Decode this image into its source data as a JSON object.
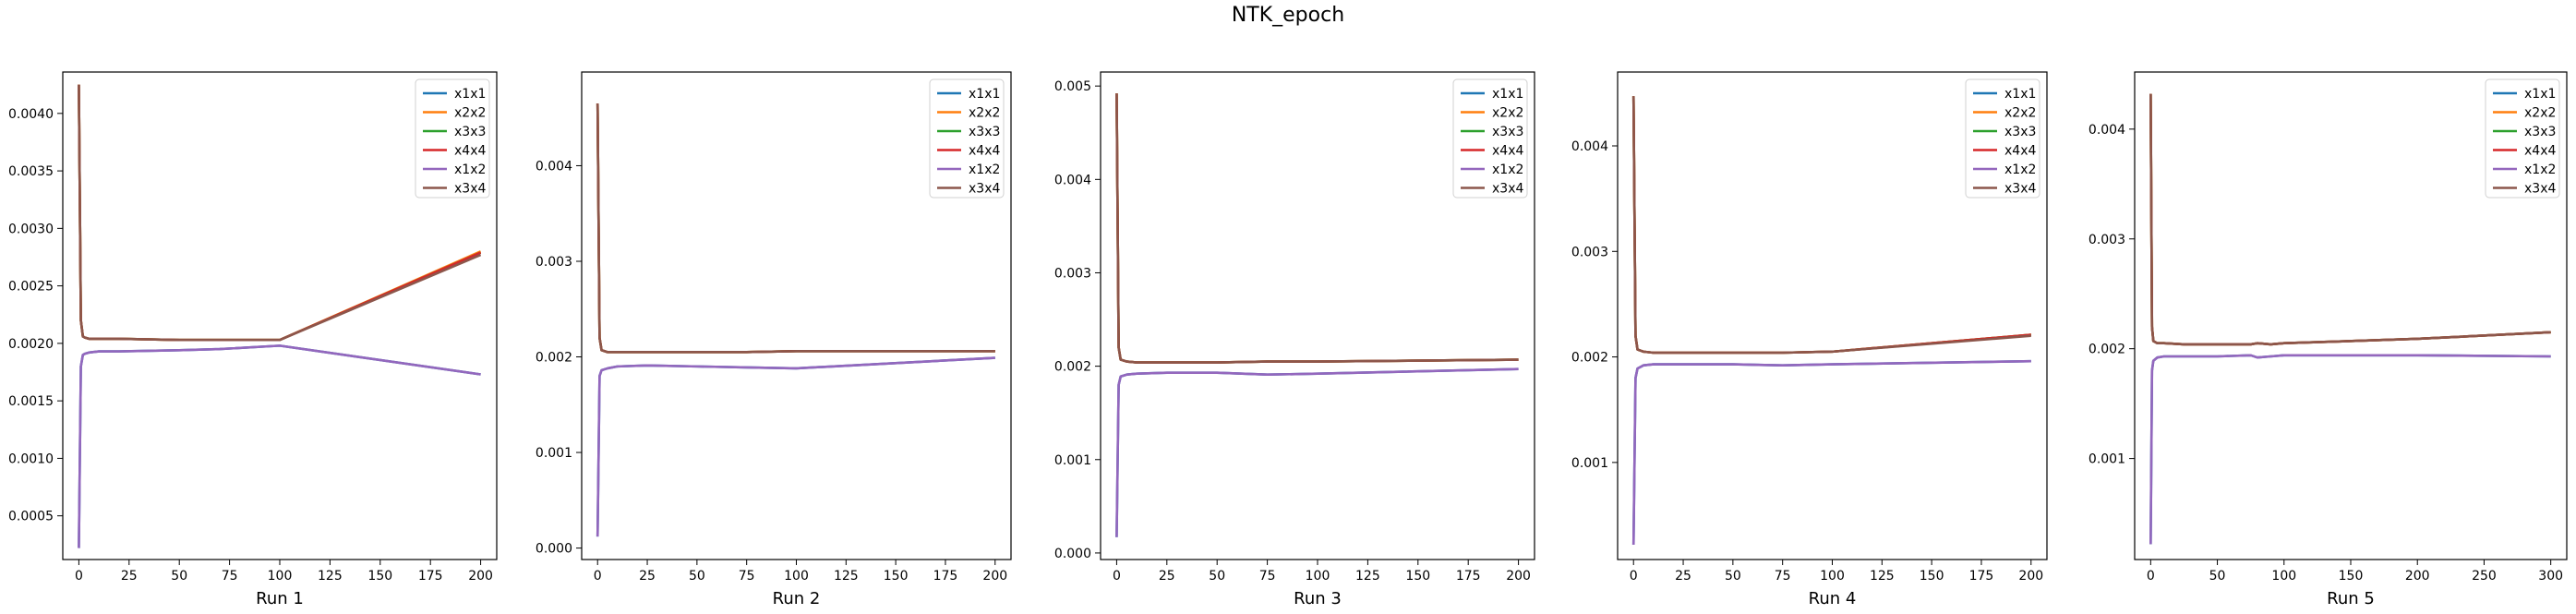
{
  "figure": {
    "title": "NTK_epoch"
  },
  "chart_data": [
    {
      "type": "line",
      "xlabel": "Run 1",
      "xlim": [
        -8,
        208
      ],
      "ylim": [
        0.00012,
        0.00436
      ],
      "xticks": [
        0,
        25,
        50,
        75,
        100,
        125,
        150,
        175,
        200
      ],
      "yticks": [
        0.0005,
        0.001,
        0.0015,
        0.002,
        0.0025,
        0.003,
        0.0035,
        0.004
      ],
      "ytick_labels": [
        "0.0005",
        "0.0010",
        "0.0015",
        "0.0020",
        "0.0025",
        "0.0030",
        "0.0035",
        "0.0040"
      ],
      "legend": "top-right",
      "series": [
        {
          "name": "x1x1",
          "color": "#1f77b4",
          "x": [
            0,
            1,
            2,
            3,
            5,
            10,
            20,
            50,
            70,
            100,
            200
          ],
          "y": [
            0.00022,
            0.0018,
            0.0019,
            0.00191,
            0.00192,
            0.00193,
            0.00193,
            0.00194,
            0.00195,
            0.00198,
            0.00173
          ]
        },
        {
          "name": "x2x2",
          "color": "#ff7f0e",
          "x": [
            0,
            1,
            2,
            3,
            5,
            10,
            20,
            50,
            70,
            100,
            200
          ],
          "y": [
            0.00425,
            0.0022,
            0.00206,
            0.00205,
            0.00204,
            0.00204,
            0.00204,
            0.00203,
            0.00203,
            0.00203,
            0.0028
          ]
        },
        {
          "name": "x3x3",
          "color": "#2ca02c",
          "x": [
            0,
            1,
            2,
            3,
            5,
            10,
            20,
            50,
            70,
            100,
            200
          ],
          "y": [
            0.00425,
            0.0022,
            0.00206,
            0.00205,
            0.00204,
            0.00204,
            0.00204,
            0.00203,
            0.00203,
            0.00203,
            0.00279
          ]
        },
        {
          "name": "x4x4",
          "color": "#d62728",
          "x": [
            0,
            1,
            2,
            3,
            5,
            10,
            20,
            50,
            70,
            100,
            200
          ],
          "y": [
            0.00425,
            0.0022,
            0.00206,
            0.00205,
            0.00204,
            0.00204,
            0.00204,
            0.00203,
            0.00203,
            0.00203,
            0.00279
          ]
        },
        {
          "name": "x1x2",
          "color": "#9467bd",
          "x": [
            0,
            1,
            2,
            3,
            5,
            10,
            20,
            50,
            70,
            100,
            200
          ],
          "y": [
            0.00022,
            0.0018,
            0.0019,
            0.00191,
            0.00192,
            0.00193,
            0.00193,
            0.00194,
            0.00195,
            0.00198,
            0.00173
          ]
        },
        {
          "name": "x3x4",
          "color": "#8c564b",
          "x": [
            0,
            1,
            2,
            3,
            5,
            10,
            20,
            50,
            70,
            100,
            200
          ],
          "y": [
            0.00425,
            0.0022,
            0.00206,
            0.00205,
            0.00204,
            0.00204,
            0.00204,
            0.00203,
            0.00203,
            0.00203,
            0.00277
          ]
        }
      ]
    },
    {
      "type": "line",
      "xlabel": "Run 2",
      "xlim": [
        -8,
        208
      ],
      "ylim": [
        -0.00012,
        0.00498
      ],
      "xticks": [
        0,
        25,
        50,
        75,
        100,
        125,
        150,
        175,
        200
      ],
      "yticks": [
        0.0,
        0.001,
        0.002,
        0.003,
        0.004
      ],
      "ytick_labels": [
        "0.000",
        "0.001",
        "0.002",
        "0.003",
        "0.004"
      ],
      "legend": "top-right",
      "series": [
        {
          "name": "x1x1",
          "color": "#1f77b4",
          "x": [
            0,
            1,
            2,
            5,
            10,
            25,
            50,
            75,
            100,
            200
          ],
          "y": [
            0.00012,
            0.0018,
            0.00186,
            0.00188,
            0.0019,
            0.00191,
            0.0019,
            0.00189,
            0.00188,
            0.00199
          ]
        },
        {
          "name": "x2x2",
          "color": "#ff7f0e",
          "x": [
            0,
            1,
            2,
            5,
            10,
            25,
            50,
            75,
            100,
            200
          ],
          "y": [
            0.00465,
            0.0022,
            0.00207,
            0.00205,
            0.00205,
            0.00205,
            0.00205,
            0.00205,
            0.00206,
            0.00206
          ]
        },
        {
          "name": "x3x3",
          "color": "#2ca02c",
          "x": [
            0,
            1,
            2,
            5,
            10,
            25,
            50,
            75,
            100,
            200
          ],
          "y": [
            0.00465,
            0.0022,
            0.00207,
            0.00205,
            0.00205,
            0.00205,
            0.00205,
            0.00205,
            0.00206,
            0.00206
          ]
        },
        {
          "name": "x4x4",
          "color": "#d62728",
          "x": [
            0,
            1,
            2,
            5,
            10,
            25,
            50,
            75,
            100,
            200
          ],
          "y": [
            0.00465,
            0.0022,
            0.00207,
            0.00205,
            0.00205,
            0.00205,
            0.00205,
            0.00205,
            0.00206,
            0.00206
          ]
        },
        {
          "name": "x1x2",
          "color": "#9467bd",
          "x": [
            0,
            1,
            2,
            5,
            10,
            25,
            50,
            75,
            100,
            200
          ],
          "y": [
            0.00012,
            0.0018,
            0.00186,
            0.00188,
            0.0019,
            0.00191,
            0.0019,
            0.00189,
            0.00188,
            0.00199
          ]
        },
        {
          "name": "x3x4",
          "color": "#8c564b",
          "x": [
            0,
            1,
            2,
            5,
            10,
            25,
            50,
            75,
            100,
            200
          ],
          "y": [
            0.00465,
            0.0022,
            0.00207,
            0.00205,
            0.00205,
            0.00205,
            0.00205,
            0.00205,
            0.00206,
            0.00206
          ]
        }
      ]
    },
    {
      "type": "line",
      "xlabel": "Run 3",
      "xlim": [
        -8,
        208
      ],
      "ylim": [
        -7e-05,
        0.00515
      ],
      "xticks": [
        0,
        25,
        50,
        75,
        100,
        125,
        150,
        175,
        200
      ],
      "yticks": [
        0.0,
        0.001,
        0.002,
        0.003,
        0.004,
        0.005
      ],
      "ytick_labels": [
        "0.000",
        "0.001",
        "0.002",
        "0.003",
        "0.004",
        "0.005"
      ],
      "legend": "top-right",
      "series": [
        {
          "name": "x1x1",
          "color": "#1f77b4",
          "x": [
            0,
            1,
            2,
            5,
            10,
            25,
            50,
            75,
            100,
            200
          ],
          "y": [
            0.00017,
            0.0018,
            0.00189,
            0.00191,
            0.00192,
            0.00193,
            0.00193,
            0.00191,
            0.00192,
            0.00197
          ]
        },
        {
          "name": "x2x2",
          "color": "#ff7f0e",
          "x": [
            0,
            1,
            2,
            5,
            10,
            25,
            50,
            75,
            100,
            200
          ],
          "y": [
            0.00492,
            0.0022,
            0.00207,
            0.00205,
            0.00204,
            0.00204,
            0.00204,
            0.00205,
            0.00205,
            0.00207
          ]
        },
        {
          "name": "x3x3",
          "color": "#2ca02c",
          "x": [
            0,
            1,
            2,
            5,
            10,
            25,
            50,
            75,
            100,
            200
          ],
          "y": [
            0.00492,
            0.0022,
            0.00207,
            0.00205,
            0.00204,
            0.00204,
            0.00204,
            0.00205,
            0.00205,
            0.00207
          ]
        },
        {
          "name": "x4x4",
          "color": "#d62728",
          "x": [
            0,
            1,
            2,
            5,
            10,
            25,
            50,
            75,
            100,
            200
          ],
          "y": [
            0.00492,
            0.0022,
            0.00207,
            0.00205,
            0.00204,
            0.00204,
            0.00204,
            0.00205,
            0.00205,
            0.00207
          ]
        },
        {
          "name": "x1x2",
          "color": "#9467bd",
          "x": [
            0,
            1,
            2,
            5,
            10,
            25,
            50,
            75,
            100,
            200
          ],
          "y": [
            0.00017,
            0.0018,
            0.00189,
            0.00191,
            0.00192,
            0.00193,
            0.00193,
            0.00191,
            0.00192,
            0.00197
          ]
        },
        {
          "name": "x3x4",
          "color": "#8c564b",
          "x": [
            0,
            1,
            2,
            5,
            10,
            25,
            50,
            75,
            100,
            200
          ],
          "y": [
            0.00492,
            0.0022,
            0.00207,
            0.00205,
            0.00204,
            0.00204,
            0.00204,
            0.00205,
            0.00205,
            0.00207
          ]
        }
      ]
    },
    {
      "type": "line",
      "xlabel": "Run 4",
      "xlim": [
        -8,
        208
      ],
      "ylim": [
        8e-05,
        0.0047
      ],
      "xticks": [
        0,
        25,
        50,
        75,
        100,
        125,
        150,
        175,
        200
      ],
      "yticks": [
        0.001,
        0.002,
        0.003,
        0.004
      ],
      "ytick_labels": [
        "0.001",
        "0.002",
        "0.003",
        "0.004"
      ],
      "legend": "top-right",
      "series": [
        {
          "name": "x1x1",
          "color": "#1f77b4",
          "x": [
            0,
            1,
            2,
            5,
            10,
            25,
            50,
            75,
            100,
            200
          ],
          "y": [
            0.00022,
            0.0018,
            0.00189,
            0.00192,
            0.00193,
            0.00193,
            0.00193,
            0.00192,
            0.00193,
            0.00196
          ]
        },
        {
          "name": "x2x2",
          "color": "#ff7f0e",
          "x": [
            0,
            1,
            2,
            5,
            10,
            25,
            50,
            75,
            100,
            200
          ],
          "y": [
            0.00447,
            0.0022,
            0.00207,
            0.00205,
            0.00204,
            0.00204,
            0.00204,
            0.00204,
            0.00205,
            0.00221
          ]
        },
        {
          "name": "x3x3",
          "color": "#2ca02c",
          "x": [
            0,
            1,
            2,
            5,
            10,
            25,
            50,
            75,
            100,
            200
          ],
          "y": [
            0.00447,
            0.0022,
            0.00207,
            0.00205,
            0.00204,
            0.00204,
            0.00204,
            0.00204,
            0.00205,
            0.00221
          ]
        },
        {
          "name": "x4x4",
          "color": "#d62728",
          "x": [
            0,
            1,
            2,
            5,
            10,
            25,
            50,
            75,
            100,
            200
          ],
          "y": [
            0.00447,
            0.0022,
            0.00207,
            0.00205,
            0.00204,
            0.00204,
            0.00204,
            0.00204,
            0.00205,
            0.00221
          ]
        },
        {
          "name": "x1x2",
          "color": "#9467bd",
          "x": [
            0,
            1,
            2,
            5,
            10,
            25,
            50,
            75,
            100,
            200
          ],
          "y": [
            0.00022,
            0.0018,
            0.00189,
            0.00192,
            0.00193,
            0.00193,
            0.00193,
            0.00192,
            0.00193,
            0.00196
          ]
        },
        {
          "name": "x3x4",
          "color": "#8c564b",
          "x": [
            0,
            1,
            2,
            5,
            10,
            25,
            50,
            75,
            100,
            200
          ],
          "y": [
            0.00447,
            0.0022,
            0.00207,
            0.00205,
            0.00204,
            0.00204,
            0.00204,
            0.00204,
            0.00205,
            0.0022
          ]
        }
      ]
    },
    {
      "type": "line",
      "xlabel": "Run 5",
      "xlim": [
        -12,
        312
      ],
      "ylim": [
        8e-05,
        0.00452
      ],
      "xticks": [
        0,
        50,
        100,
        150,
        200,
        250,
        300
      ],
      "yticks": [
        0.001,
        0.002,
        0.003,
        0.004
      ],
      "ytick_labels": [
        "0.001",
        "0.002",
        "0.003",
        "0.004"
      ],
      "legend": "top-right",
      "series": [
        {
          "name": "x1x1",
          "color": "#1f77b4",
          "x": [
            0,
            1,
            2,
            5,
            10,
            25,
            50,
            75,
            80,
            90,
            100,
            200,
            300
          ],
          "y": [
            0.00022,
            0.0018,
            0.00189,
            0.00192,
            0.00193,
            0.00193,
            0.00193,
            0.00194,
            0.00192,
            0.00193,
            0.00194,
            0.00194,
            0.00193
          ]
        },
        {
          "name": "x2x2",
          "color": "#ff7f0e",
          "x": [
            0,
            1,
            2,
            5,
            10,
            25,
            50,
            75,
            80,
            90,
            100,
            200,
            300
          ],
          "y": [
            0.00432,
            0.0022,
            0.00207,
            0.00205,
            0.00205,
            0.00204,
            0.00204,
            0.00204,
            0.00205,
            0.00204,
            0.00205,
            0.00209,
            0.00215
          ]
        },
        {
          "name": "x3x3",
          "color": "#2ca02c",
          "x": [
            0,
            1,
            2,
            5,
            10,
            25,
            50,
            75,
            80,
            90,
            100,
            200,
            300
          ],
          "y": [
            0.00432,
            0.0022,
            0.00207,
            0.00205,
            0.00205,
            0.00204,
            0.00204,
            0.00204,
            0.00205,
            0.00204,
            0.00205,
            0.00209,
            0.00215
          ]
        },
        {
          "name": "x4x4",
          "color": "#d62728",
          "x": [
            0,
            1,
            2,
            5,
            10,
            25,
            50,
            75,
            80,
            90,
            100,
            200,
            300
          ],
          "y": [
            0.00432,
            0.0022,
            0.00207,
            0.00205,
            0.00205,
            0.00204,
            0.00204,
            0.00204,
            0.00205,
            0.00204,
            0.00205,
            0.00209,
            0.00215
          ]
        },
        {
          "name": "x1x2",
          "color": "#9467bd",
          "x": [
            0,
            1,
            2,
            5,
            10,
            25,
            50,
            75,
            80,
            90,
            100,
            200,
            300
          ],
          "y": [
            0.00022,
            0.0018,
            0.00189,
            0.00192,
            0.00193,
            0.00193,
            0.00193,
            0.00194,
            0.00192,
            0.00193,
            0.00194,
            0.00194,
            0.00193
          ]
        },
        {
          "name": "x3x4",
          "color": "#8c564b",
          "x": [
            0,
            1,
            2,
            5,
            10,
            25,
            50,
            75,
            80,
            90,
            100,
            200,
            300
          ],
          "y": [
            0.00432,
            0.0022,
            0.00207,
            0.00205,
            0.00205,
            0.00204,
            0.00204,
            0.00204,
            0.00205,
            0.00204,
            0.00205,
            0.00209,
            0.00215
          ]
        }
      ]
    }
  ]
}
